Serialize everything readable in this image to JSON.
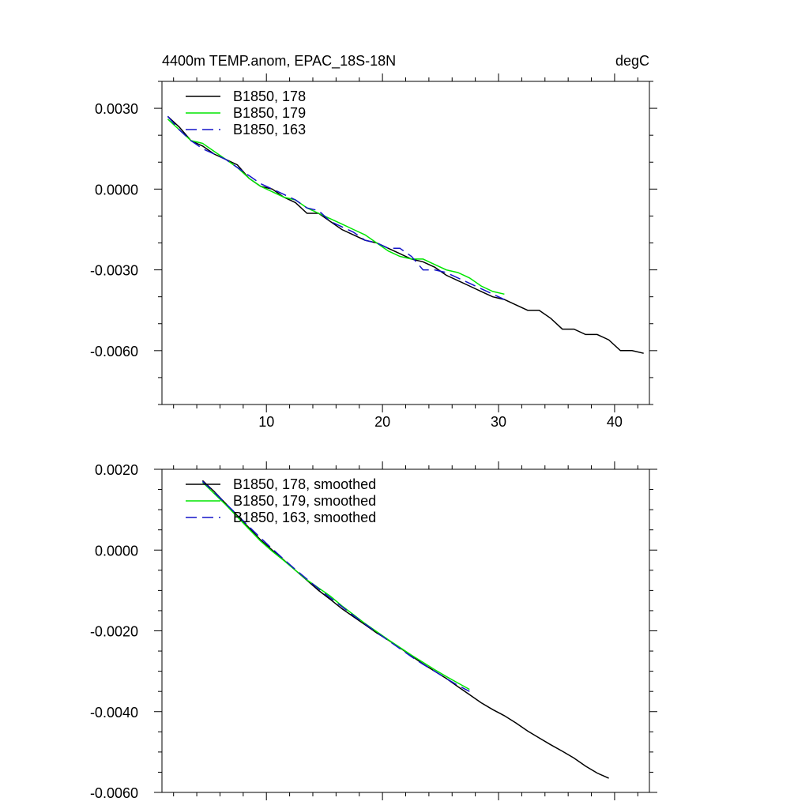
{
  "chart_data": [
    {
      "type": "line",
      "title": "4400m TEMP.anom, EPAC_18S-18N",
      "units": "degC",
      "xlabel": "",
      "ylabel": "",
      "xlim": [
        1,
        43
      ],
      "ylim": [
        -0.008,
        0.004
      ],
      "x_ticks": [
        10,
        20,
        30,
        40
      ],
      "x_tick_labels": [
        "10",
        "20",
        "30",
        "40"
      ],
      "y_ticks": [
        0.003,
        0.0,
        -0.003,
        -0.006
      ],
      "y_tick_labels": [
        "0.0030",
        "0.0000",
        "-0.0030",
        "-0.0060"
      ],
      "x_minor_step": 2,
      "y_minor_step": 0.001,
      "grid": false,
      "legend_position": "top-left",
      "series": [
        {
          "name": "B1850, 178",
          "color": "#000000",
          "dash": "solid",
          "x": [
            1.5,
            2.5,
            3.5,
            4.5,
            5.5,
            6.5,
            7.5,
            8.5,
            9.5,
            10.5,
            11.5,
            12.5,
            13.5,
            14.5,
            15.5,
            16.5,
            17.5,
            18.5,
            19.5,
            20.5,
            21.5,
            22.5,
            23.5,
            24.5,
            25.5,
            26.5,
            27.5,
            28.5,
            29.5,
            30.5,
            31.5,
            32.5,
            33.5,
            34.5,
            35.5,
            36.5,
            37.5,
            38.5,
            39.5,
            40.5,
            41.5,
            42.5
          ],
          "y": [
            0.0027,
            0.0023,
            0.0018,
            0.0016,
            0.0013,
            0.0011,
            0.0009,
            0.0004,
            0.0001,
            0.0,
            -0.0003,
            -0.0005,
            -0.0009,
            -0.0009,
            -0.0012,
            -0.0015,
            -0.0017,
            -0.0019,
            -0.002,
            -0.0022,
            -0.0024,
            -0.0026,
            -0.0027,
            -0.0029,
            -0.0032,
            -0.0034,
            -0.0036,
            -0.0038,
            -0.004,
            -0.0041,
            -0.0043,
            -0.0045,
            -0.0045,
            -0.0048,
            -0.0052,
            -0.0052,
            -0.0054,
            -0.0054,
            -0.0056,
            -0.006,
            -0.006,
            -0.0061
          ]
        },
        {
          "name": "B1850, 179",
          "color": "#00e600",
          "dash": "solid",
          "x": [
            1.5,
            2.5,
            3.5,
            4.5,
            5.5,
            6.5,
            7.5,
            8.5,
            9.5,
            10.5,
            11.5,
            12.5,
            13.5,
            14.5,
            15.5,
            16.5,
            17.5,
            18.5,
            19.5,
            20.5,
            21.5,
            22.5,
            23.5,
            24.5,
            25.5,
            26.5,
            27.5,
            28.5,
            29.5,
            30.5
          ],
          "y": [
            0.0026,
            0.0022,
            0.0018,
            0.0017,
            0.0014,
            0.0011,
            0.0008,
            0.0004,
            0.0001,
            -0.0001,
            -0.0003,
            -0.0004,
            -0.0007,
            -0.0009,
            -0.0011,
            -0.0013,
            -0.0015,
            -0.0017,
            -0.002,
            -0.0023,
            -0.0025,
            -0.0026,
            -0.0026,
            -0.0028,
            -0.003,
            -0.0031,
            -0.0033,
            -0.0036,
            -0.0038,
            -0.0039
          ]
        },
        {
          "name": "B1850, 163",
          "color": "#1414c8",
          "dash": "dashed",
          "x": [
            1.5,
            2.5,
            3.5,
            4.5,
            5.5,
            6.5,
            7.5,
            8.5,
            9.5,
            10.5,
            11.5,
            12.5,
            13.5,
            14.5,
            15.5,
            16.5,
            17.5,
            18.5,
            19.5,
            20.5,
            21.5,
            22.5,
            23.5,
            24.5,
            25.5,
            26.5,
            27.5,
            28.5,
            29.5,
            30.5
          ],
          "y": [
            0.0027,
            0.0022,
            0.0018,
            0.0015,
            0.0013,
            0.0011,
            0.0008,
            0.0005,
            0.0002,
            0.0,
            -0.0002,
            -0.0004,
            -0.0007,
            -0.0008,
            -0.0012,
            -0.0014,
            -0.0016,
            -0.0019,
            -0.002,
            -0.0022,
            -0.0022,
            -0.0025,
            -0.003,
            -0.003,
            -0.0031,
            -0.0033,
            -0.0035,
            -0.0037,
            -0.0039,
            -0.0041
          ]
        }
      ]
    },
    {
      "type": "line",
      "title": "",
      "units": "",
      "xlabel": "",
      "ylabel": "",
      "xlim": [
        1,
        43
      ],
      "ylim": [
        -0.006,
        0.002
      ],
      "x_ticks": [
        10,
        20,
        30,
        40
      ],
      "x_tick_labels": [],
      "y_ticks": [
        0.002,
        0.0,
        -0.002,
        -0.004,
        -0.006
      ],
      "y_tick_labels": [
        "0.0020",
        "0.0000",
        "-0.0020",
        "-0.0040",
        "-0.0060"
      ],
      "x_minor_step": 2,
      "y_minor_step": 0.0005,
      "grid": false,
      "legend_position": "top-left",
      "series": [
        {
          "name": "B1850, 178, smoothed",
          "color": "#000000",
          "dash": "solid",
          "x": [
            4.5,
            5.5,
            6.5,
            7.5,
            8.5,
            9.5,
            10.5,
            11.5,
            12.5,
            13.5,
            14.5,
            15.5,
            16.5,
            17.5,
            18.5,
            19.5,
            20.5,
            21.5,
            22.5,
            23.5,
            24.5,
            25.5,
            26.5,
            27.5,
            28.5,
            29.5,
            30.5,
            31.5,
            32.5,
            33.5,
            34.5,
            35.5,
            36.5,
            37.5,
            38.5,
            39.5
          ],
          "y": [
            0.00172,
            0.00145,
            0.00115,
            0.00085,
            0.00055,
            0.00025,
            0.0,
            -0.00025,
            -0.0005,
            -0.00075,
            -0.001,
            -0.00122,
            -0.00145,
            -0.00165,
            -0.00185,
            -0.00205,
            -0.00223,
            -0.00242,
            -0.00262,
            -0.00282,
            -0.003,
            -0.00318,
            -0.00338,
            -0.00358,
            -0.00378,
            -0.00395,
            -0.0041,
            -0.00428,
            -0.00448,
            -0.00465,
            -0.00482,
            -0.00498,
            -0.00515,
            -0.00535,
            -0.00552,
            -0.00565
          ]
        },
        {
          "name": "B1850, 179, smoothed",
          "color": "#00e600",
          "dash": "solid",
          "x": [
            4.5,
            5.5,
            6.5,
            7.5,
            8.5,
            9.5,
            10.5,
            11.5,
            12.5,
            13.5,
            14.5,
            15.5,
            16.5,
            17.5,
            18.5,
            19.5,
            20.5,
            21.5,
            22.5,
            23.5,
            24.5,
            25.5,
            26.5,
            27.5
          ],
          "y": [
            0.00168,
            0.0014,
            0.00112,
            0.00082,
            0.00052,
            0.00022,
            -3e-05,
            -0.00026,
            -0.0005,
            -0.00074,
            -0.00094,
            -0.00114,
            -0.00138,
            -0.0016,
            -0.00182,
            -0.00202,
            -0.00222,
            -0.00241,
            -0.0026,
            -0.00278,
            -0.00296,
            -0.00313,
            -0.00329,
            -0.00345
          ]
        },
        {
          "name": "B1850, 163, smoothed",
          "color": "#1414c8",
          "dash": "dashed",
          "x": [
            4.5,
            5.5,
            6.5,
            7.5,
            8.5,
            9.5,
            10.5,
            11.5,
            12.5,
            13.5,
            14.5,
            15.5,
            16.5,
            17.5,
            18.5,
            19.5,
            20.5,
            21.5,
            22.5,
            23.5,
            24.5,
            25.5,
            26.5,
            27.5
          ],
          "y": [
            0.0017,
            0.00143,
            0.00115,
            0.00087,
            0.00058,
            0.0003,
            3e-05,
            -0.00023,
            -0.00048,
            -0.00072,
            -0.00096,
            -0.00118,
            -0.0014,
            -0.00162,
            -0.00183,
            -0.00204,
            -0.00224,
            -0.00244,
            -0.00264,
            -0.00283,
            -0.003,
            -0.00318,
            -0.00335,
            -0.0035
          ]
        }
      ]
    }
  ]
}
